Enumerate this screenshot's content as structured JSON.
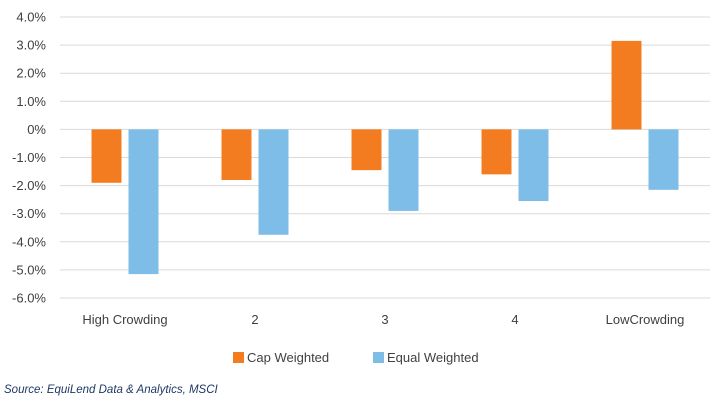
{
  "chart_data": {
    "type": "bar",
    "categories": [
      "High Crowding",
      "2",
      "3",
      "4",
      "LowCrowding"
    ],
    "series": [
      {
        "name": "Cap Weighted",
        "color": "#f47c20",
        "values": [
          -1.9,
          -1.8,
          -1.45,
          -1.6,
          3.15
        ]
      },
      {
        "name": "Equal Weighted",
        "color": "#7dbde8",
        "values": [
          -5.15,
          -3.75,
          -2.9,
          -2.55,
          -2.15
        ]
      }
    ],
    "ylim": [
      -6.0,
      4.0
    ],
    "yticks": [
      4.0,
      3.0,
      2.0,
      1.0,
      0,
      -1.0,
      -2.0,
      -3.0,
      -4.0,
      -5.0,
      -6.0
    ],
    "ytick_labels": [
      "4.0%",
      "3.0%",
      "2.0%",
      "1.0%",
      "0%",
      "-1.0%",
      "-2.0%",
      "-3.0%",
      "-4.0%",
      "-5.0%",
      "-6.0%"
    ],
    "grid": true,
    "gridline_color": "#d9d9d9",
    "legend_position": "bottom",
    "source": "Source: EquiLend Data & Analytics, MSCI"
  }
}
